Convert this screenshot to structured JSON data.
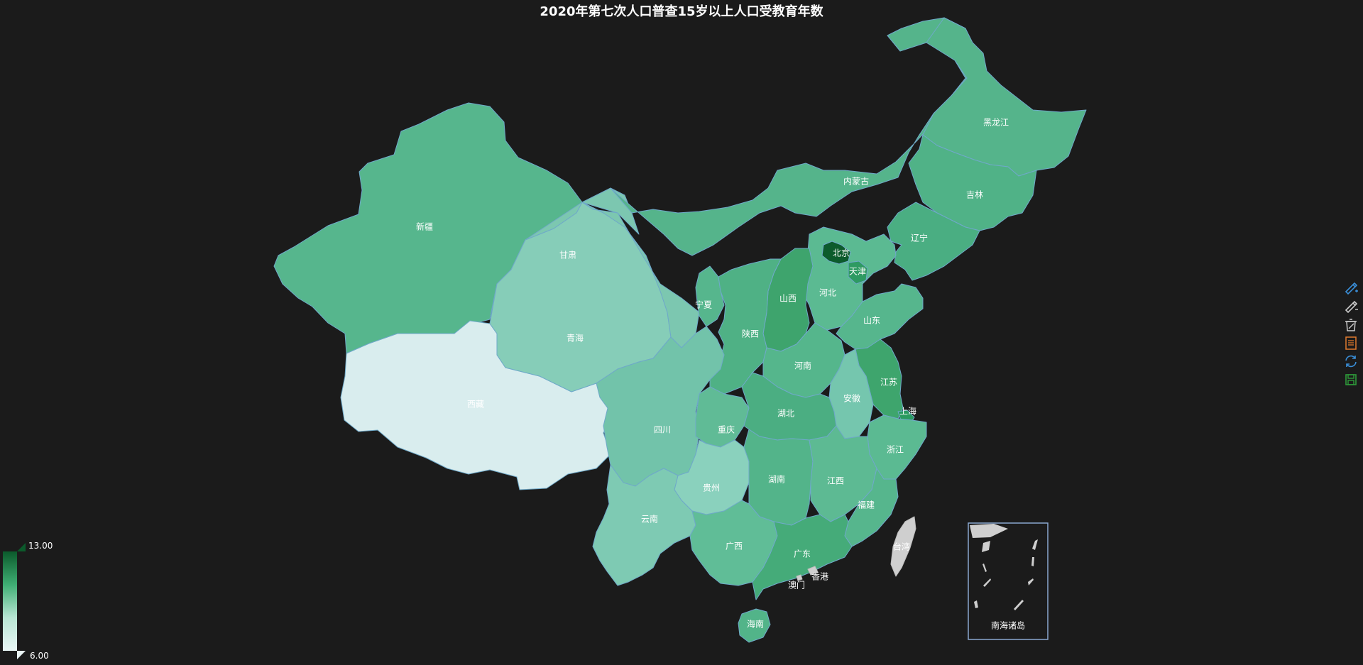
{
  "title": "2020年第七次人口普查15岁以上人口受教育年数",
  "visual_map": {
    "max_label": "13.00",
    "min_label": "6.00",
    "colors": [
      "#0b5a2b",
      "#3fae74",
      "#b9e6d4",
      "#eaf7f6"
    ]
  },
  "provinces": {
    "xinjiang": "新疆",
    "xizang": "西藏",
    "qinghai": "青海",
    "gansu": "甘肃",
    "neimenggu": "内蒙古",
    "heilongjiang": "黑龙江",
    "jilin": "吉林",
    "liaoning": "辽宁",
    "beijing": "北京",
    "tianjin": "天津",
    "hebei": "河北",
    "shanxi": "山西",
    "shandong": "山东",
    "ningxia": "宁夏",
    "shaanxi": "陕西",
    "henan": "河南",
    "jiangsu": "江苏",
    "anhui": "安徽",
    "shanghai": "上海",
    "sichuan": "四川",
    "chongqing": "重庆",
    "hubei": "湖北",
    "zhejiang": "浙江",
    "guizhou": "贵州",
    "hunan": "湖南",
    "jiangxi": "江西",
    "fujian": "福建",
    "yunnan": "云南",
    "guangxi": "广西",
    "guangdong": "广东",
    "taiwan": "台湾",
    "xianggang": "香港",
    "aomen": "澳门",
    "hainan": "海南",
    "nanhai": "南海诸岛"
  },
  "toolbox": [
    "brush-icon",
    "brush-clear-icon",
    "trash-icon",
    "data-view-icon",
    "refresh-icon",
    "save-image-icon"
  ]
}
